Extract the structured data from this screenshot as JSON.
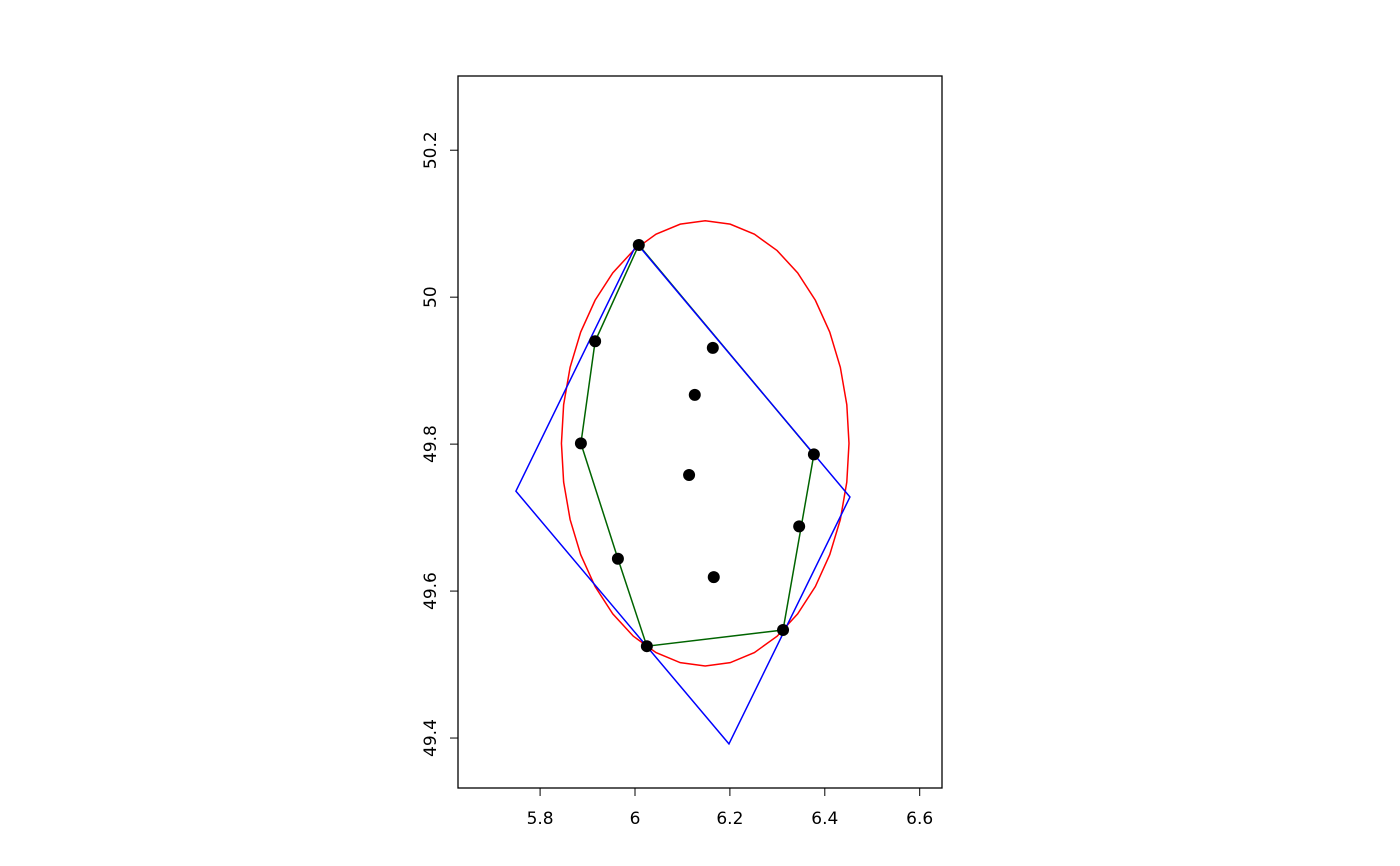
{
  "chart_data": {
    "type": "scatter",
    "title": "",
    "xlabel": "",
    "ylabel": "",
    "xlim": [
      5.627,
      6.647
    ],
    "ylim": [
      49.332,
      50.301
    ],
    "grid": false,
    "legend": "none",
    "x_ticks": [
      {
        "value": 5.8,
        "label": "5.8"
      },
      {
        "value": 6.0,
        "label": "6"
      },
      {
        "value": 6.2,
        "label": "6.2"
      },
      {
        "value": 6.4,
        "label": "6.4"
      },
      {
        "value": 6.6,
        "label": "6.6"
      }
    ],
    "y_ticks": [
      {
        "value": 49.4,
        "label": "49.4"
      },
      {
        "value": 49.6,
        "label": "49.6"
      },
      {
        "value": 49.8,
        "label": "49.8"
      },
      {
        "value": 50.0,
        "label": "50"
      },
      {
        "value": 50.2,
        "label": "50.2"
      }
    ],
    "points": {
      "color": "#000000",
      "x": [
        6.008,
        5.916,
        6.164,
        6.126,
        5.886,
        6.377,
        6.114,
        6.346,
        5.964,
        6.166,
        6.312,
        6.025
      ],
      "y": [
        50.071,
        49.94,
        49.931,
        49.867,
        49.801,
        49.786,
        49.758,
        49.688,
        49.644,
        49.619,
        49.547,
        49.525
      ]
    },
    "convex_hull": {
      "color": "#006400",
      "x": [
        6.008,
        5.916,
        5.886,
        5.964,
        6.025,
        6.312,
        6.377
      ],
      "y": [
        50.071,
        49.94,
        49.801,
        49.644,
        49.525,
        49.547,
        49.786
      ]
    },
    "min_rotated_rectangle": {
      "color": "#0000ff",
      "x": [
        5.749,
        6.004,
        6.453,
        6.198
      ],
      "y": [
        49.736,
        50.073,
        49.728,
        49.392
      ]
    },
    "min_enclosing_circle": {
      "color": "#ff0000",
      "center": [
        6.148,
        49.801
      ],
      "radius": 0.303,
      "vertices": 36
    }
  }
}
